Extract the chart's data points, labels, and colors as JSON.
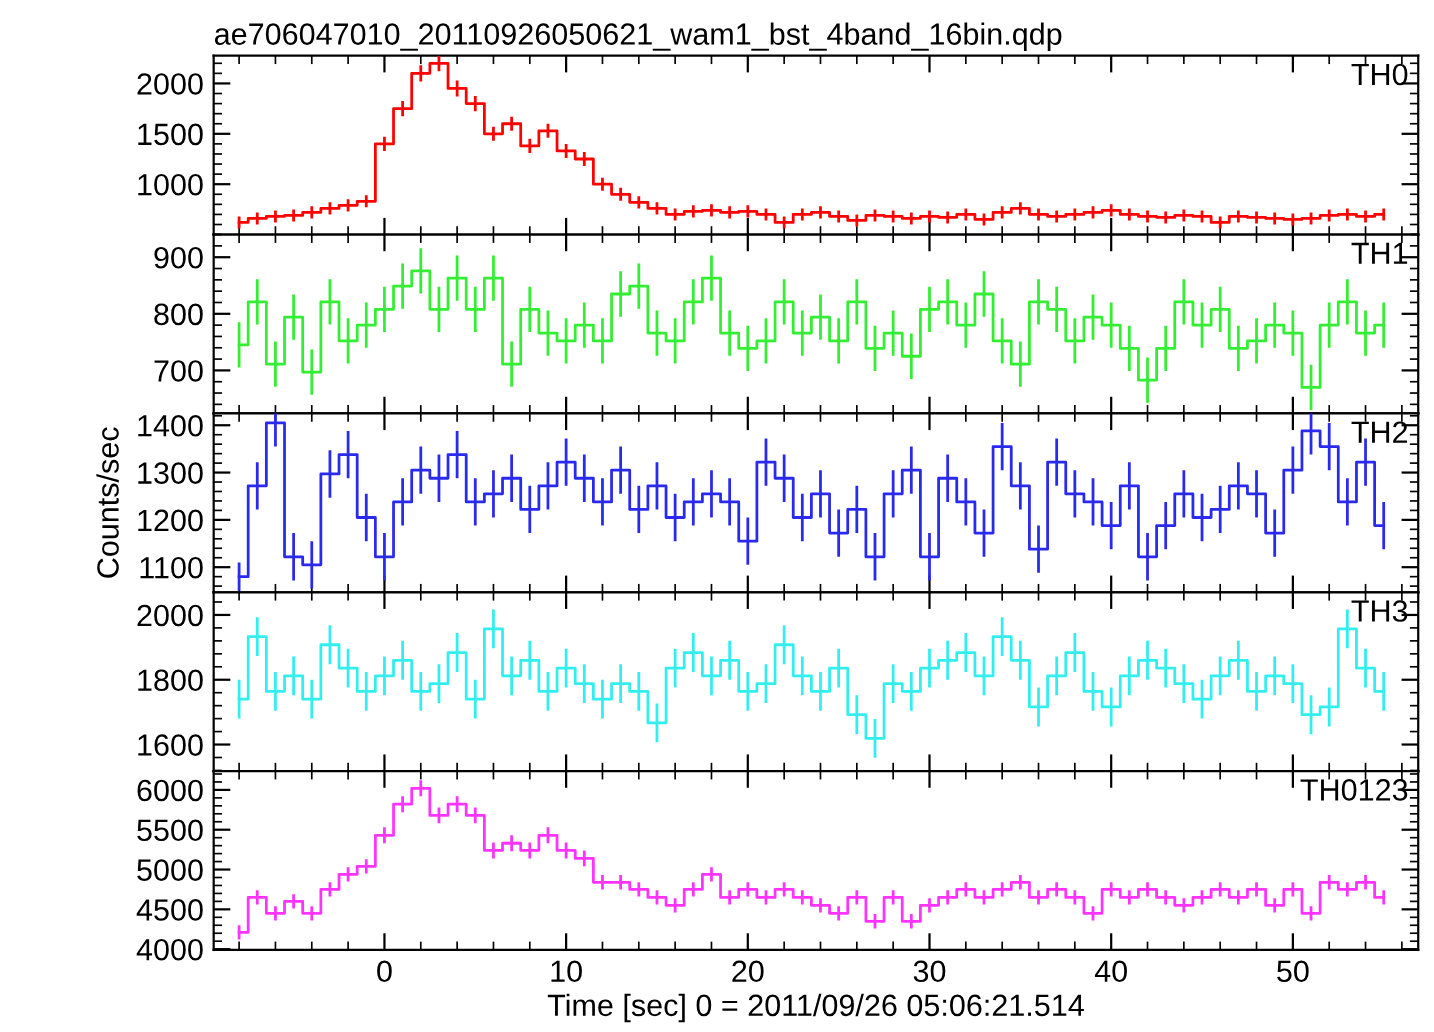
{
  "chart_data": [
    {
      "type": "step",
      "title": "ae706047010_20110926050621_wam1_bst_4band_16bin.qdp",
      "tick_labels": "y",
      "xlim": [
        -9.4,
        56.9
      ],
      "xticks": [
        0,
        10,
        20,
        30,
        40,
        50
      ],
      "ylim": [
        500,
        2275
      ],
      "yticks": [
        1000,
        1500,
        2000
      ],
      "x": [
        -8,
        -7,
        -6,
        -5,
        -4,
        -3,
        -2,
        -1,
        0,
        1,
        2,
        3,
        4,
        5,
        6,
        7,
        8,
        9,
        10,
        11,
        12,
        13,
        14,
        15,
        16,
        17,
        18,
        19,
        20,
        21,
        22,
        23,
        24,
        25,
        26,
        27,
        28,
        29,
        30,
        31,
        32,
        33,
        34,
        35,
        36,
        37,
        38,
        39,
        40,
        41,
        42,
        43,
        44,
        45,
        46,
        47,
        48,
        49,
        50,
        51,
        52,
        53,
        54,
        55
      ],
      "series": [
        {
          "name": "TH0",
          "color": "#ff0000",
          "values": [
            620,
            660,
            680,
            690,
            720,
            760,
            790,
            830,
            1400,
            1750,
            2100,
            2200,
            1950,
            1800,
            1500,
            1600,
            1380,
            1530,
            1330,
            1250,
            1000,
            900,
            820,
            760,
            700,
            730,
            740,
            720,
            730,
            700,
            620,
            700,
            720,
            680,
            640,
            690,
            680,
            660,
            680,
            670,
            700,
            650,
            720,
            760,
            700,
            680,
            700,
            720,
            740,
            700,
            680,
            670,
            690,
            680,
            620,
            680,
            670,
            660,
            650,
            660,
            690,
            700,
            680,
            700
          ],
          "errors": [
            60,
            60,
            60,
            60,
            60,
            60,
            60,
            60,
            70,
            75,
            80,
            80,
            80,
            75,
            70,
            70,
            70,
            70,
            70,
            70,
            65,
            65,
            60,
            60,
            60,
            60,
            60,
            60,
            60,
            60,
            60,
            60,
            60,
            60,
            60,
            60,
            60,
            60,
            60,
            60,
            60,
            60,
            60,
            60,
            60,
            60,
            60,
            60,
            60,
            60,
            60,
            60,
            60,
            60,
            60,
            60,
            60,
            60,
            60,
            60,
            60,
            60,
            60,
            60
          ]
        }
      ]
    },
    {
      "type": "step",
      "tick_labels": "y",
      "xlim": [
        -9.4,
        56.9
      ],
      "xticks": [
        0,
        10,
        20,
        30,
        40,
        50
      ],
      "ylim": [
        624,
        940
      ],
      "yticks": [
        700,
        800,
        900
      ],
      "x": [
        -8,
        -7,
        -6,
        -5,
        -4,
        -3,
        -2,
        -1,
        0,
        1,
        2,
        3,
        4,
        5,
        6,
        7,
        8,
        9,
        10,
        11,
        12,
        13,
        14,
        15,
        16,
        17,
        18,
        19,
        20,
        21,
        22,
        23,
        24,
        25,
        26,
        27,
        28,
        29,
        30,
        31,
        32,
        33,
        34,
        35,
        36,
        37,
        38,
        39,
        40,
        41,
        42,
        43,
        44,
        45,
        46,
        47,
        48,
        49,
        50,
        51,
        52,
        53,
        54,
        55
      ],
      "series": [
        {
          "name": "TH1",
          "color": "#33ee33",
          "values": [
            745,
            821,
            711,
            794,
            697,
            821,
            752,
            780,
            808,
            849,
            876,
            808,
            863,
            808,
            863,
            711,
            808,
            766,
            752,
            780,
            752,
            835,
            849,
            766,
            752,
            821,
            863,
            766,
            739,
            752,
            821,
            766,
            794,
            752,
            821,
            739,
            766,
            725,
            808,
            821,
            780,
            835,
            752,
            711,
            821,
            808,
            752,
            794,
            780,
            739,
            683,
            739,
            821,
            780,
            808,
            739,
            752,
            780,
            766,
            670,
            780,
            821,
            766,
            780
          ],
          "errors": [
            40,
            40,
            40,
            40,
            40,
            40,
            40,
            40,
            40,
            40,
            40,
            40,
            40,
            40,
            40,
            40,
            40,
            40,
            40,
            40,
            40,
            40,
            40,
            40,
            40,
            40,
            40,
            40,
            40,
            40,
            40,
            40,
            40,
            40,
            40,
            40,
            40,
            40,
            40,
            40,
            40,
            40,
            40,
            40,
            40,
            40,
            40,
            40,
            40,
            40,
            40,
            40,
            40,
            40,
            40,
            40,
            40,
            40,
            40,
            40,
            40,
            40,
            40,
            40
          ]
        }
      ]
    },
    {
      "type": "step",
      "ylabel": "Counts/sec",
      "tick_labels": "y",
      "xlim": [
        -9.4,
        56.9
      ],
      "xticks": [
        0,
        10,
        20,
        30,
        40,
        50
      ],
      "ylim": [
        1047,
        1425
      ],
      "yticks": [
        1100,
        1200,
        1300,
        1400
      ],
      "x": [
        -8,
        -7,
        -6,
        -5,
        -4,
        -3,
        -2,
        -1,
        0,
        1,
        2,
        3,
        4,
        5,
        6,
        7,
        8,
        9,
        10,
        11,
        12,
        13,
        14,
        15,
        16,
        17,
        18,
        19,
        20,
        21,
        22,
        23,
        24,
        25,
        26,
        27,
        28,
        29,
        30,
        31,
        32,
        33,
        34,
        35,
        36,
        37,
        38,
        39,
        40,
        41,
        42,
        43,
        44,
        45,
        46,
        47,
        48,
        49,
        50,
        51,
        52,
        53,
        54,
        55
      ],
      "series": [
        {
          "name": "TH2",
          "color": "#2a2aee",
          "values": [
            1080,
            1272,
            1405,
            1122,
            1105,
            1297,
            1338,
            1205,
            1122,
            1238,
            1305,
            1288,
            1338,
            1238,
            1255,
            1288,
            1222,
            1272,
            1322,
            1288,
            1238,
            1305,
            1222,
            1272,
            1205,
            1238,
            1255,
            1238,
            1155,
            1322,
            1288,
            1205,
            1255,
            1172,
            1222,
            1122,
            1255,
            1305,
            1122,
            1288,
            1238,
            1172,
            1355,
            1272,
            1138,
            1322,
            1255,
            1238,
            1188,
            1272,
            1122,
            1188,
            1255,
            1205,
            1222,
            1272,
            1255,
            1172,
            1305,
            1388,
            1355,
            1238,
            1322,
            1188
          ],
          "errors": [
            30,
            50,
            50,
            50,
            50,
            50,
            50,
            50,
            50,
            50,
            50,
            50,
            50,
            50,
            50,
            50,
            50,
            50,
            50,
            50,
            50,
            50,
            50,
            50,
            50,
            50,
            50,
            50,
            50,
            50,
            50,
            50,
            50,
            50,
            50,
            50,
            50,
            50,
            50,
            50,
            50,
            50,
            50,
            50,
            50,
            50,
            50,
            50,
            50,
            50,
            50,
            50,
            50,
            50,
            50,
            50,
            50,
            50,
            50,
            50,
            50,
            50,
            50,
            50
          ]
        }
      ]
    },
    {
      "type": "step",
      "tick_labels": "y",
      "xlim": [
        -9.4,
        56.9
      ],
      "xticks": [
        0,
        10,
        20,
        30,
        40,
        50
      ],
      "ylim": [
        1518,
        2070
      ],
      "yticks": [
        1600,
        1800,
        2000
      ],
      "x": [
        -8,
        -7,
        -6,
        -5,
        -4,
        -3,
        -2,
        -1,
        0,
        1,
        2,
        3,
        4,
        5,
        6,
        7,
        8,
        9,
        10,
        11,
        12,
        13,
        14,
        15,
        16,
        17,
        18,
        19,
        20,
        21,
        22,
        23,
        24,
        25,
        26,
        27,
        28,
        29,
        30,
        31,
        32,
        33,
        34,
        35,
        36,
        37,
        38,
        39,
        40,
        41,
        42,
        43,
        44,
        45,
        46,
        47,
        48,
        49,
        50,
        51,
        52,
        53,
        54,
        55
      ],
      "series": [
        {
          "name": "TH3",
          "color": "#33eeee",
          "values": [
            1740,
            1933,
            1764,
            1812,
            1740,
            1908,
            1836,
            1764,
            1812,
            1860,
            1764,
            1788,
            1884,
            1740,
            1957,
            1812,
            1860,
            1764,
            1836,
            1788,
            1740,
            1788,
            1764,
            1667,
            1836,
            1884,
            1812,
            1860,
            1764,
            1788,
            1908,
            1812,
            1764,
            1836,
            1692,
            1619,
            1788,
            1764,
            1836,
            1860,
            1884,
            1812,
            1933,
            1860,
            1716,
            1812,
            1884,
            1764,
            1716,
            1812,
            1860,
            1836,
            1788,
            1740,
            1812,
            1860,
            1764,
            1812,
            1788,
            1692,
            1716,
            1957,
            1836,
            1764
          ],
          "errors": [
            60,
            60,
            60,
            60,
            60,
            60,
            60,
            60,
            60,
            60,
            60,
            60,
            60,
            60,
            60,
            60,
            60,
            60,
            60,
            60,
            60,
            60,
            60,
            60,
            60,
            60,
            60,
            60,
            60,
            60,
            60,
            60,
            60,
            60,
            60,
            60,
            60,
            60,
            60,
            60,
            60,
            60,
            60,
            60,
            60,
            60,
            60,
            60,
            60,
            60,
            60,
            60,
            60,
            60,
            60,
            60,
            60,
            60,
            60,
            60,
            60,
            60,
            60,
            60
          ]
        }
      ]
    },
    {
      "type": "step",
      "xlabel": "Time [sec] 0 = 2011/09/26 05:06:21.514",
      "xlim": [
        -9.4,
        56.9
      ],
      "xticks": [
        0,
        10,
        20,
        30,
        40,
        50
      ],
      "ylim": [
        3990,
        6236
      ],
      "yticks": [
        4000,
        4500,
        5000,
        5500,
        6000
      ],
      "x": [
        -8,
        -7,
        -6,
        -5,
        -4,
        -3,
        -2,
        -1,
        0,
        1,
        2,
        3,
        4,
        5,
        6,
        7,
        8,
        9,
        10,
        11,
        12,
        13,
        14,
        15,
        16,
        17,
        18,
        19,
        20,
        21,
        22,
        23,
        24,
        25,
        26,
        27,
        28,
        29,
        30,
        31,
        32,
        33,
        34,
        35,
        36,
        37,
        38,
        39,
        40,
        41,
        42,
        43,
        44,
        45,
        46,
        47,
        48,
        49,
        50,
        51,
        52,
        53,
        54,
        55
      ],
      "series": [
        {
          "name": "TH0123",
          "color": "#ff33ff",
          "values": [
            4210,
            4650,
            4450,
            4600,
            4450,
            4750,
            4940,
            5040,
            5430,
            5820,
            6020,
            5680,
            5820,
            5680,
            5240,
            5330,
            5240,
            5430,
            5240,
            5140,
            4840,
            4840,
            4750,
            4650,
            4550,
            4750,
            4940,
            4650,
            4750,
            4650,
            4750,
            4650,
            4550,
            4450,
            4650,
            4350,
            4650,
            4350,
            4550,
            4650,
            4750,
            4650,
            4750,
            4840,
            4650,
            4750,
            4650,
            4450,
            4750,
            4650,
            4750,
            4650,
            4550,
            4650,
            4750,
            4650,
            4750,
            4550,
            4750,
            4450,
            4840,
            4750,
            4840,
            4650
          ],
          "errors": [
            90,
            90,
            90,
            90,
            90,
            90,
            90,
            90,
            100,
            100,
            100,
            100,
            100,
            100,
            100,
            100,
            100,
            100,
            100,
            100,
            90,
            90,
            90,
            90,
            90,
            90,
            90,
            90,
            90,
            90,
            90,
            90,
            90,
            90,
            90,
            90,
            90,
            90,
            90,
            90,
            90,
            90,
            90,
            90,
            90,
            90,
            90,
            90,
            90,
            90,
            90,
            90,
            90,
            90,
            90,
            90,
            90,
            90,
            90,
            90,
            90,
            90,
            90,
            90
          ]
        }
      ]
    }
  ]
}
